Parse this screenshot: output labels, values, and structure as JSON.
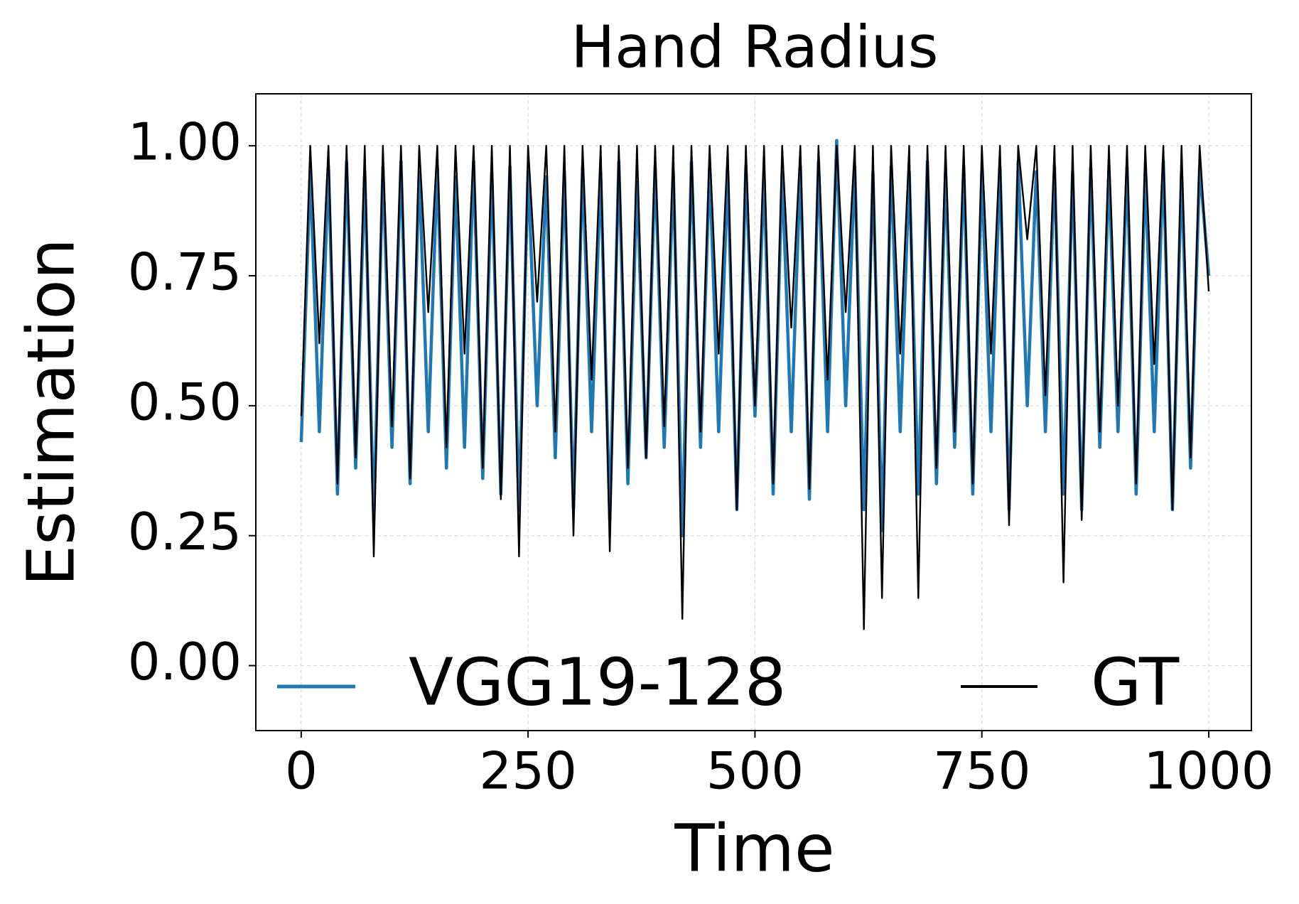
{
  "chart_data": {
    "type": "line",
    "title": "Hand Radius",
    "x_label": "Time",
    "y_label": "Estimation",
    "x": [
      0,
      10,
      20,
      30,
      40,
      50,
      60,
      70,
      80,
      90,
      100,
      110,
      120,
      130,
      140,
      150,
      160,
      170,
      180,
      190,
      200,
      210,
      220,
      230,
      240,
      250,
      260,
      270,
      280,
      290,
      300,
      310,
      320,
      330,
      340,
      350,
      360,
      370,
      380,
      390,
      400,
      410,
      420,
      430,
      440,
      450,
      460,
      470,
      480,
      490,
      500,
      510,
      520,
      530,
      540,
      550,
      560,
      570,
      580,
      590,
      600,
      610,
      620,
      630,
      640,
      650,
      660,
      670,
      680,
      690,
      700,
      710,
      720,
      730,
      740,
      750,
      760,
      770,
      780,
      790,
      800,
      810,
      820,
      830,
      840,
      850,
      860,
      870,
      880,
      890,
      900,
      910,
      920,
      930,
      940,
      950,
      960,
      970,
      980,
      990,
      1000
    ],
    "series": [
      {
        "name": "VGG19-128",
        "color": "#1f77b4",
        "values": [
          0.43,
          0.95,
          0.45,
          0.96,
          0.33,
          0.97,
          0.38,
          0.95,
          0.28,
          0.96,
          0.42,
          0.97,
          0.35,
          0.95,
          0.45,
          0.96,
          0.38,
          0.94,
          0.42,
          0.97,
          0.36,
          0.95,
          0.33,
          0.96,
          0.3,
          0.95,
          0.5,
          0.94,
          0.4,
          0.95,
          0.3,
          0.96,
          0.45,
          0.95,
          0.28,
          0.97,
          0.35,
          0.93,
          0.4,
          0.96,
          0.42,
          0.95,
          0.25,
          0.97,
          0.42,
          0.96,
          0.45,
          0.95,
          0.3,
          0.96,
          0.48,
          0.94,
          0.33,
          0.95,
          0.45,
          0.96,
          0.32,
          0.97,
          0.45,
          1.01,
          0.5,
          0.96,
          0.3,
          0.95,
          0.26,
          0.96,
          0.45,
          0.95,
          0.33,
          0.97,
          0.35,
          0.95,
          0.42,
          0.96,
          0.33,
          0.95,
          0.45,
          0.96,
          0.3,
          0.97,
          0.5,
          0.95,
          0.45,
          0.96,
          0.33,
          0.95,
          0.3,
          0.96,
          0.42,
          0.95,
          0.45,
          0.96,
          0.33,
          0.95,
          0.45,
          0.97,
          0.3,
          0.95,
          0.38,
          0.96,
          0.75
        ]
      },
      {
        "name": "GT",
        "color": "#000000",
        "values": [
          0.48,
          1,
          0.62,
          1,
          0.35,
          1,
          0.4,
          1,
          0.21,
          1,
          0.46,
          1,
          0.36,
          1,
          0.68,
          1,
          0.42,
          1,
          0.6,
          1,
          0.38,
          1,
          0.32,
          1,
          0.21,
          1,
          0.7,
          1,
          0.45,
          1,
          0.25,
          1,
          0.55,
          1,
          0.22,
          1,
          0.38,
          1,
          0.4,
          1,
          0.46,
          1,
          0.09,
          1,
          0.45,
          1,
          0.6,
          1,
          0.3,
          1,
          0.5,
          1,
          0.35,
          1,
          0.65,
          1,
          0.34,
          1,
          0.55,
          1,
          0.68,
          1,
          0.07,
          1,
          0.13,
          1,
          0.6,
          1,
          0.13,
          1,
          0.38,
          1,
          0.45,
          1,
          0.35,
          1,
          0.6,
          1,
          0.27,
          1,
          0.82,
          1,
          0.52,
          1,
          0.16,
          1,
          0.28,
          1,
          0.45,
          1,
          0.5,
          1,
          0.35,
          1,
          0.58,
          1,
          0.3,
          1,
          0.4,
          1,
          0.72
        ]
      }
    ],
    "xlim": [
      -50,
      1047
    ],
    "ylim": [
      -0.125,
      1.1
    ],
    "xticks": [
      0,
      250,
      500,
      750,
      1000
    ],
    "yticks": [
      {
        "value": 0,
        "label": "0.00"
      },
      {
        "value": 0.25,
        "label": "0.25"
      },
      {
        "value": 0.5,
        "label": "0.50"
      },
      {
        "value": 0.75,
        "label": "0.75"
      },
      {
        "value": 1,
        "label": "1.00"
      }
    ],
    "grid": true,
    "legend": "lower center"
  }
}
